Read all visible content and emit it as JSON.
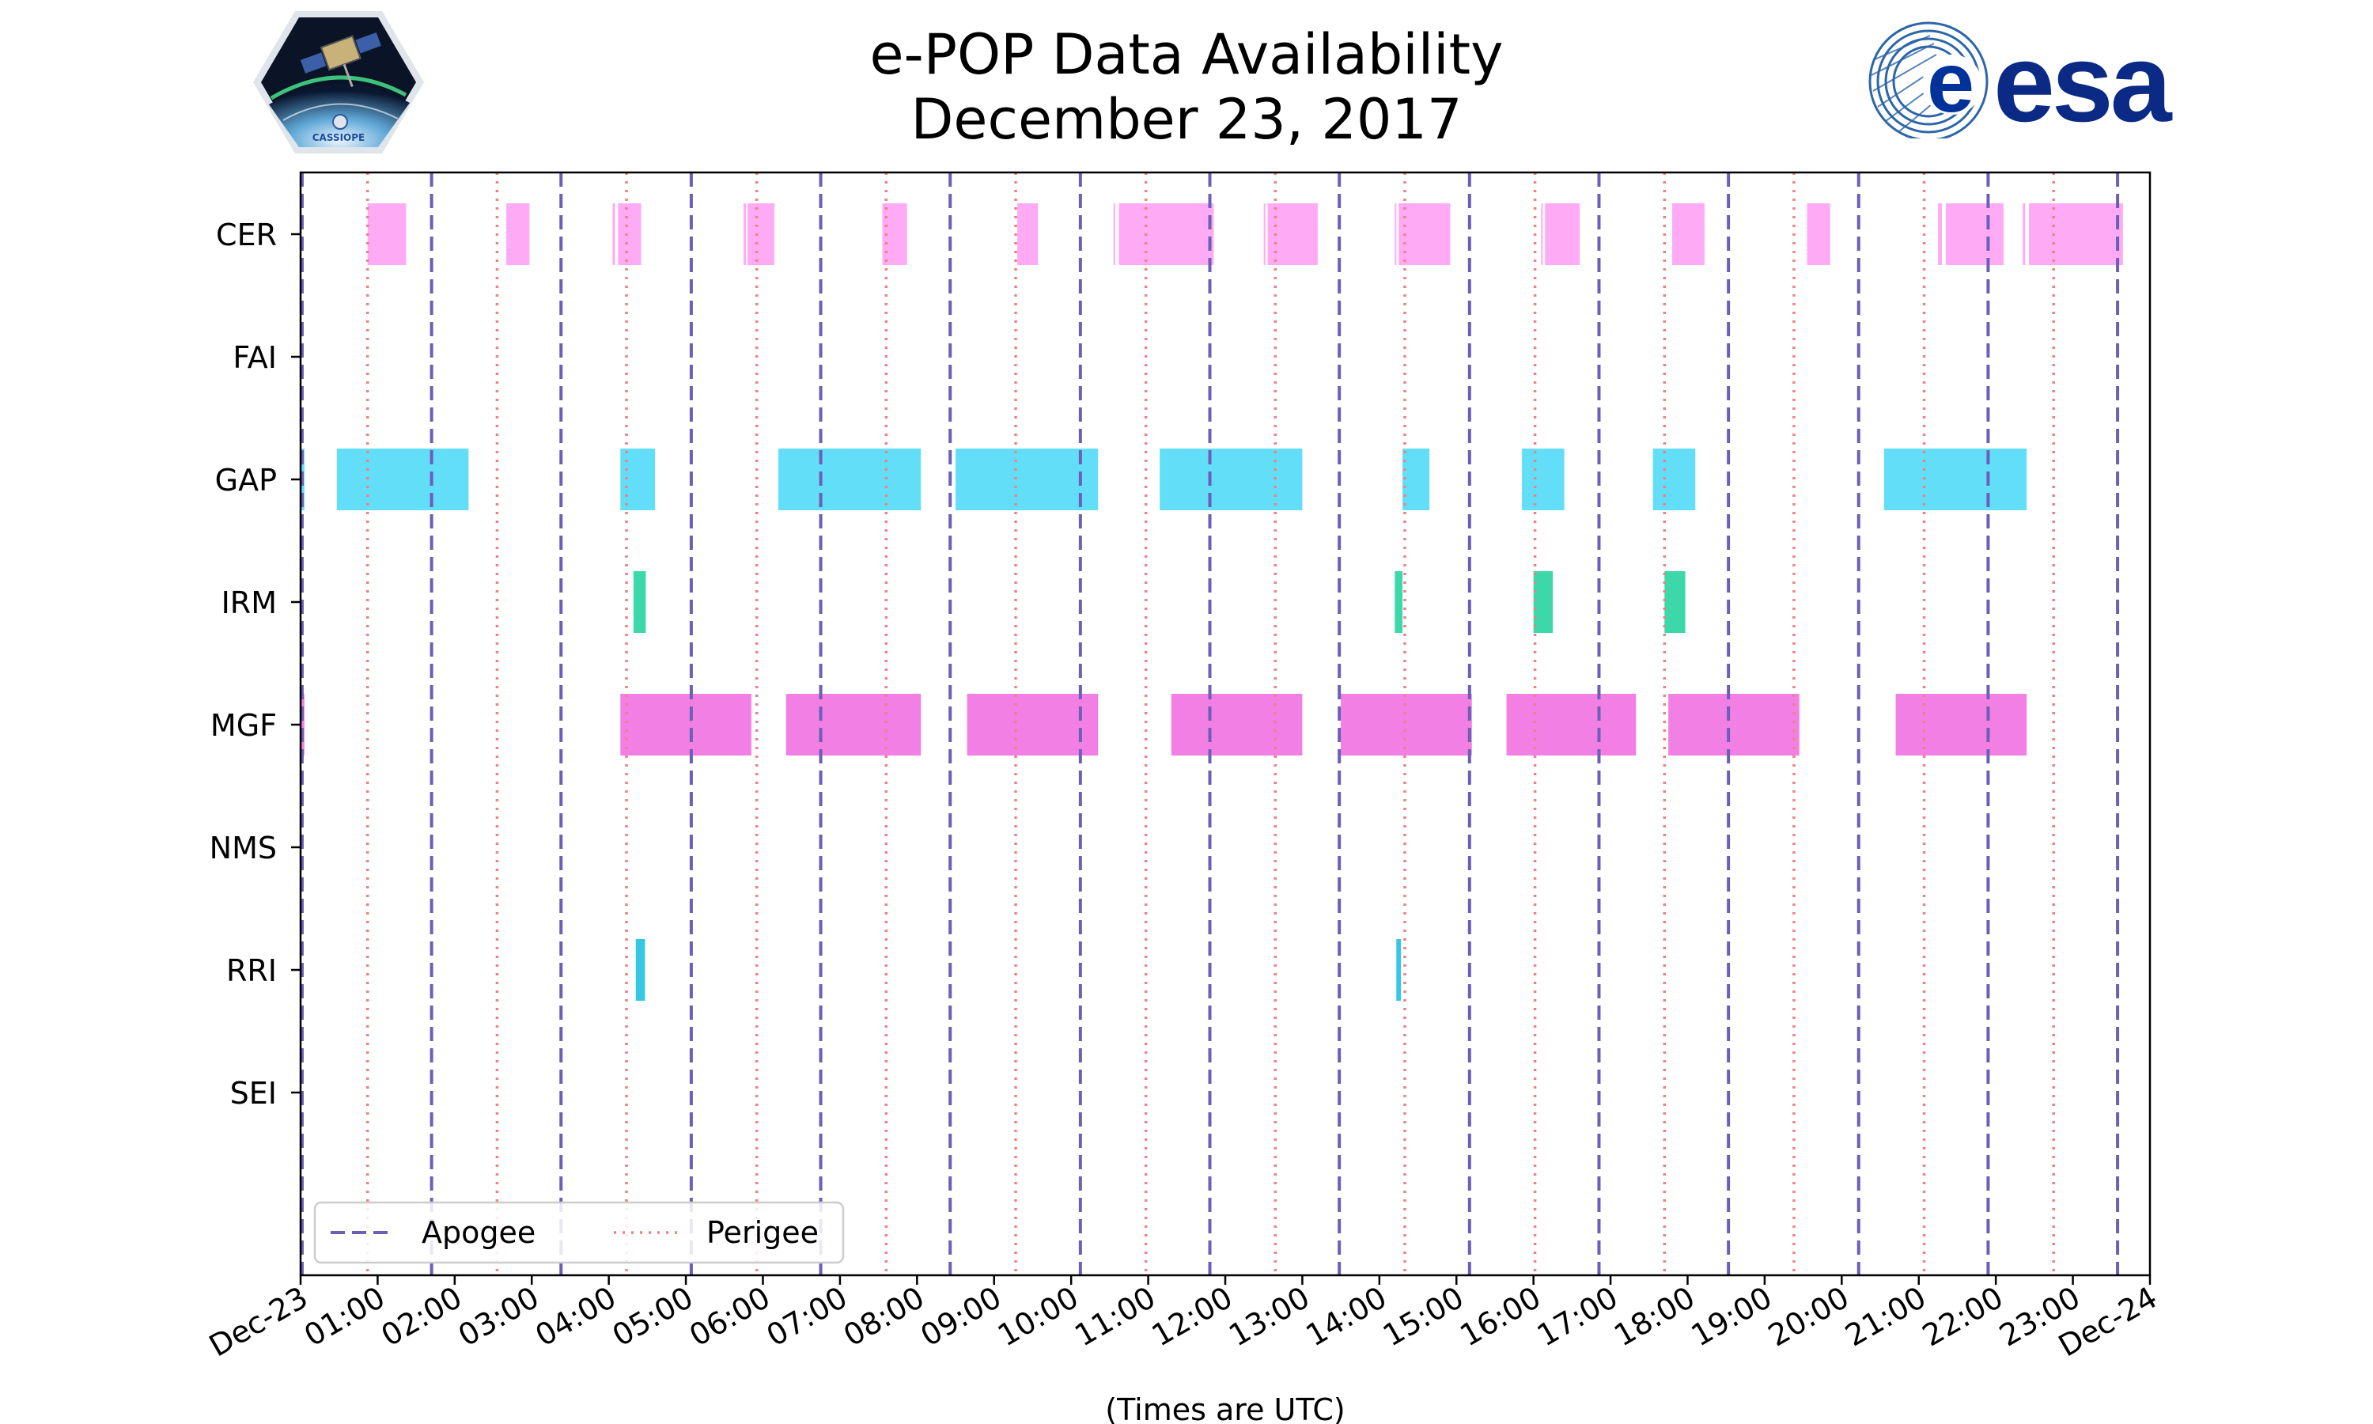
{
  "title_line1": "e-POP Data Availability",
  "title_line2": "December 23, 2017",
  "logos": {
    "mission_text": "CASSIOPE",
    "esa_text": "esa"
  },
  "colors": {
    "apogee": "#6c5fb5",
    "perigee": "#f08080",
    "CER": "#ffaaf5",
    "GAP": "#62def9",
    "IRM": "#3dd8aa",
    "MGF": "#f27fe4",
    "RRI": "#36c7e4"
  },
  "chart_data": {
    "type": "timeline",
    "title": "e-POP Data Availability\nDecember 23, 2017",
    "xlabel": "(Times are UTC)",
    "xlim_hours": [
      0,
      24
    ],
    "x_ticks": [
      "Dec-23",
      "01:00",
      "02:00",
      "03:00",
      "04:00",
      "05:00",
      "06:00",
      "07:00",
      "08:00",
      "09:00",
      "10:00",
      "11:00",
      "12:00",
      "13:00",
      "14:00",
      "15:00",
      "16:00",
      "17:00",
      "18:00",
      "19:00",
      "20:00",
      "21:00",
      "22:00",
      "23:00",
      "Dec-24"
    ],
    "instruments": [
      "CER",
      "FAI",
      "GAP",
      "IRM",
      "MGF",
      "NMS",
      "RRI",
      "SEI"
    ],
    "intervals_hours": {
      "CER": [
        [
          0.87,
          1.37
        ],
        [
          2.67,
          2.97
        ],
        [
          4.05,
          4.08
        ],
        [
          4.12,
          4.42
        ],
        [
          5.75,
          5.78
        ],
        [
          5.8,
          6.15
        ],
        [
          7.55,
          7.87
        ],
        [
          9.3,
          9.57
        ],
        [
          10.55,
          10.57
        ],
        [
          10.62,
          11.85
        ],
        [
          12.5,
          12.52
        ],
        [
          12.55,
          13.2
        ],
        [
          14.2,
          14.22
        ],
        [
          14.25,
          14.92
        ],
        [
          16.1,
          16.12
        ],
        [
          16.15,
          16.6
        ],
        [
          17.8,
          18.22
        ],
        [
          19.55,
          19.85
        ],
        [
          21.25,
          21.3
        ],
        [
          21.35,
          22.1
        ],
        [
          22.35,
          22.38
        ],
        [
          22.43,
          23.65
        ]
      ],
      "FAI": [],
      "GAP": [
        [
          0.0,
          0.05
        ],
        [
          0.47,
          2.18
        ],
        [
          4.15,
          4.6
        ],
        [
          6.2,
          8.05
        ],
        [
          8.5,
          10.35
        ],
        [
          11.15,
          13.0
        ],
        [
          14.3,
          14.65
        ],
        [
          15.85,
          16.4
        ],
        [
          17.55,
          18.1
        ],
        [
          20.55,
          22.4
        ]
      ],
      "IRM": [
        [
          4.32,
          4.48
        ],
        [
          14.2,
          14.3
        ],
        [
          16.0,
          16.25
        ],
        [
          17.7,
          17.97
        ]
      ],
      "MGF": [
        [
          0.0,
          0.05
        ],
        [
          4.15,
          5.85
        ],
        [
          6.3,
          8.05
        ],
        [
          8.65,
          10.35
        ],
        [
          11.3,
          13.0
        ],
        [
          13.5,
          15.2
        ],
        [
          15.65,
          17.33
        ],
        [
          17.75,
          19.45
        ],
        [
          20.7,
          22.4
        ]
      ],
      "NMS": [],
      "RRI": [
        [
          4.35,
          4.47
        ],
        [
          14.22,
          14.28
        ]
      ],
      "SEI": []
    },
    "apogee_hours": [
      0.02,
      1.7,
      3.38,
      5.07,
      6.75,
      8.43,
      10.12,
      11.8,
      13.48,
      15.17,
      16.85,
      18.53,
      20.22,
      21.9,
      23.58
    ],
    "perigee_hours": [
      0.87,
      2.55,
      4.23,
      5.92,
      7.6,
      9.28,
      10.97,
      12.65,
      14.33,
      16.02,
      17.7,
      19.38,
      21.07,
      22.75
    ],
    "legend": {
      "placement": "lower-left",
      "entries": [
        "Apogee",
        "Perigee"
      ]
    }
  }
}
